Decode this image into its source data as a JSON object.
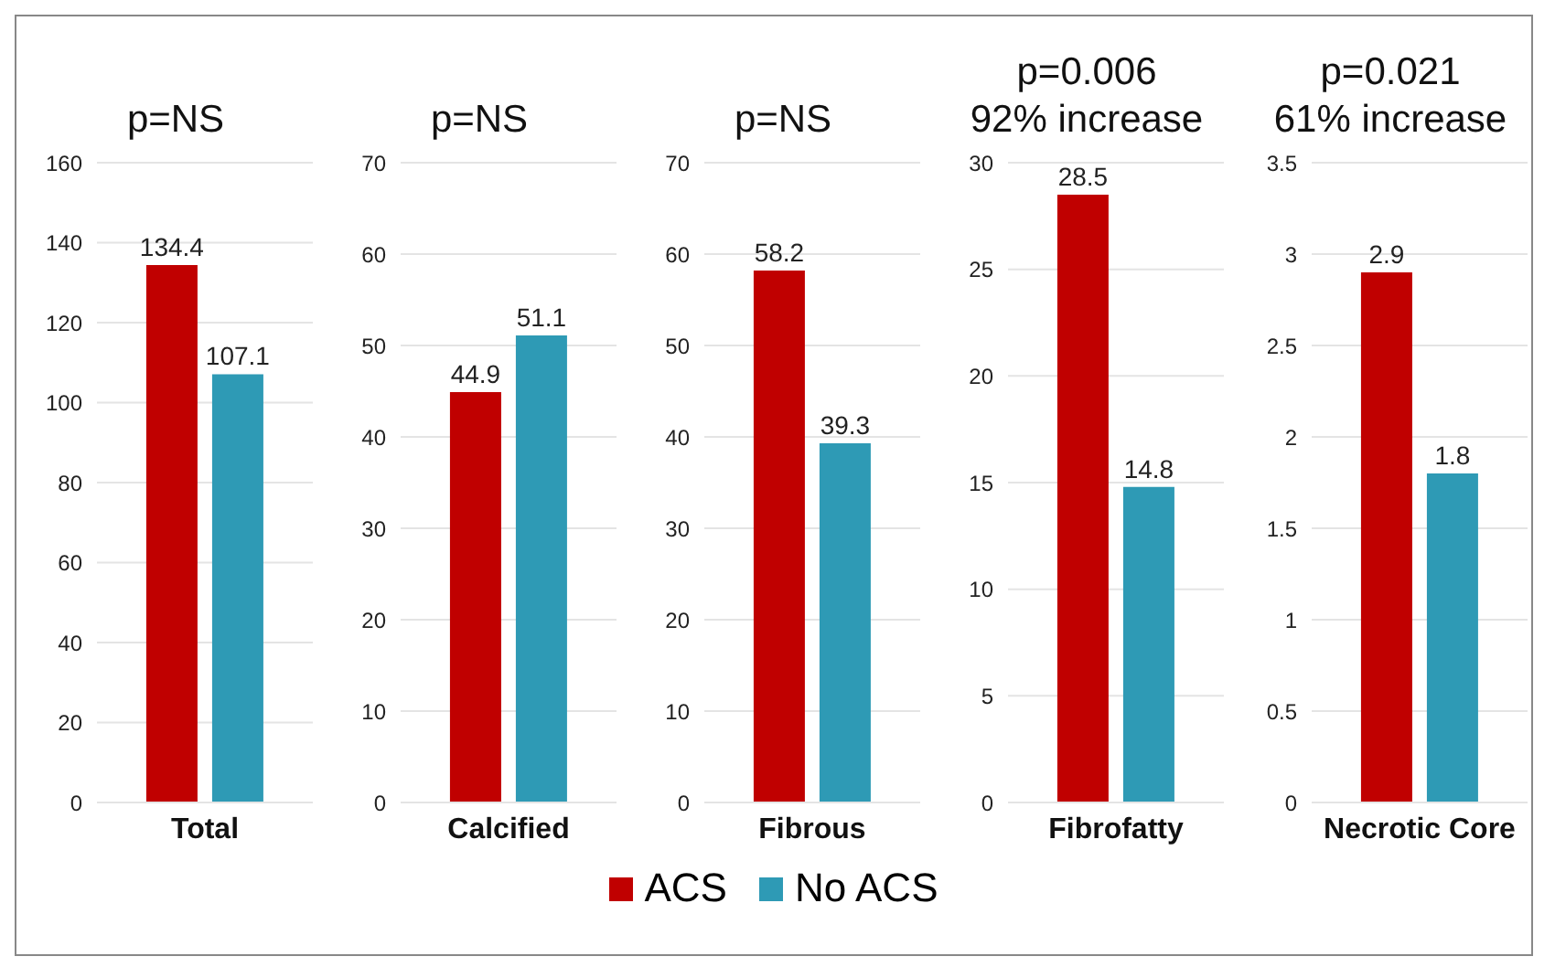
{
  "chart_data": [
    {
      "type": "bar",
      "title": "p=NS",
      "categories": [
        "Total"
      ],
      "series": [
        {
          "name": "ACS",
          "color": "#c00000",
          "values": [
            134.4
          ]
        },
        {
          "name": "No ACS",
          "color": "#2e9ab5",
          "values": [
            107.1
          ]
        }
      ],
      "ylim": [
        0,
        160
      ],
      "yticks": [
        0,
        20,
        40,
        60,
        80,
        100,
        120,
        140,
        160
      ],
      "grid": "y",
      "data_labels": true,
      "legend": "bottom"
    },
    {
      "type": "bar",
      "title": "p=NS",
      "categories": [
        "Calcified"
      ],
      "series": [
        {
          "color": "#c00000",
          "values": [
            44.9
          ]
        },
        {
          "color": "#2e9ab5",
          "values": [
            51.1
          ]
        }
      ],
      "ylim": [
        0,
        70
      ],
      "yticks": [
        0,
        10,
        20,
        30,
        40,
        50,
        60,
        70
      ],
      "grid": "y",
      "data_labels": true
    },
    {
      "type": "bar",
      "title": "p=NS",
      "categories": [
        "Fibrous"
      ],
      "series": [
        {
          "color": "#c00000",
          "values": [
            58.2
          ]
        },
        {
          "color": "#2e9ab5",
          "values": [
            39.3
          ]
        }
      ],
      "ylim": [
        0,
        70
      ],
      "yticks": [
        0,
        10,
        20,
        30,
        40,
        50,
        60,
        70
      ],
      "grid": "y",
      "data_labels": true
    },
    {
      "type": "bar",
      "title": "p=0.006",
      "subtitle": "92% increase",
      "categories": [
        "Fibrofatty"
      ],
      "series": [
        {
          "color": "#c00000",
          "values": [
            28.5
          ]
        },
        {
          "color": "#2e9ab5",
          "values": [
            14.8
          ]
        }
      ],
      "ylim": [
        0,
        30
      ],
      "yticks": [
        0,
        5,
        10,
        15,
        20,
        25,
        30
      ],
      "grid": "y",
      "data_labels": true
    },
    {
      "type": "bar",
      "title": "p=0.021",
      "subtitle": "61% increase",
      "categories": [
        "Necrotic Core"
      ],
      "series": [
        {
          "color": "#c00000",
          "values": [
            2.9
          ]
        },
        {
          "color": "#2e9ab5",
          "values": [
            1.8
          ]
        }
      ],
      "ylim": [
        0,
        3.5
      ],
      "yticks": [
        0,
        0.5,
        1,
        1.5,
        2,
        2.5,
        3,
        3.5
      ],
      "grid": "y",
      "data_labels": true
    }
  ]
}
